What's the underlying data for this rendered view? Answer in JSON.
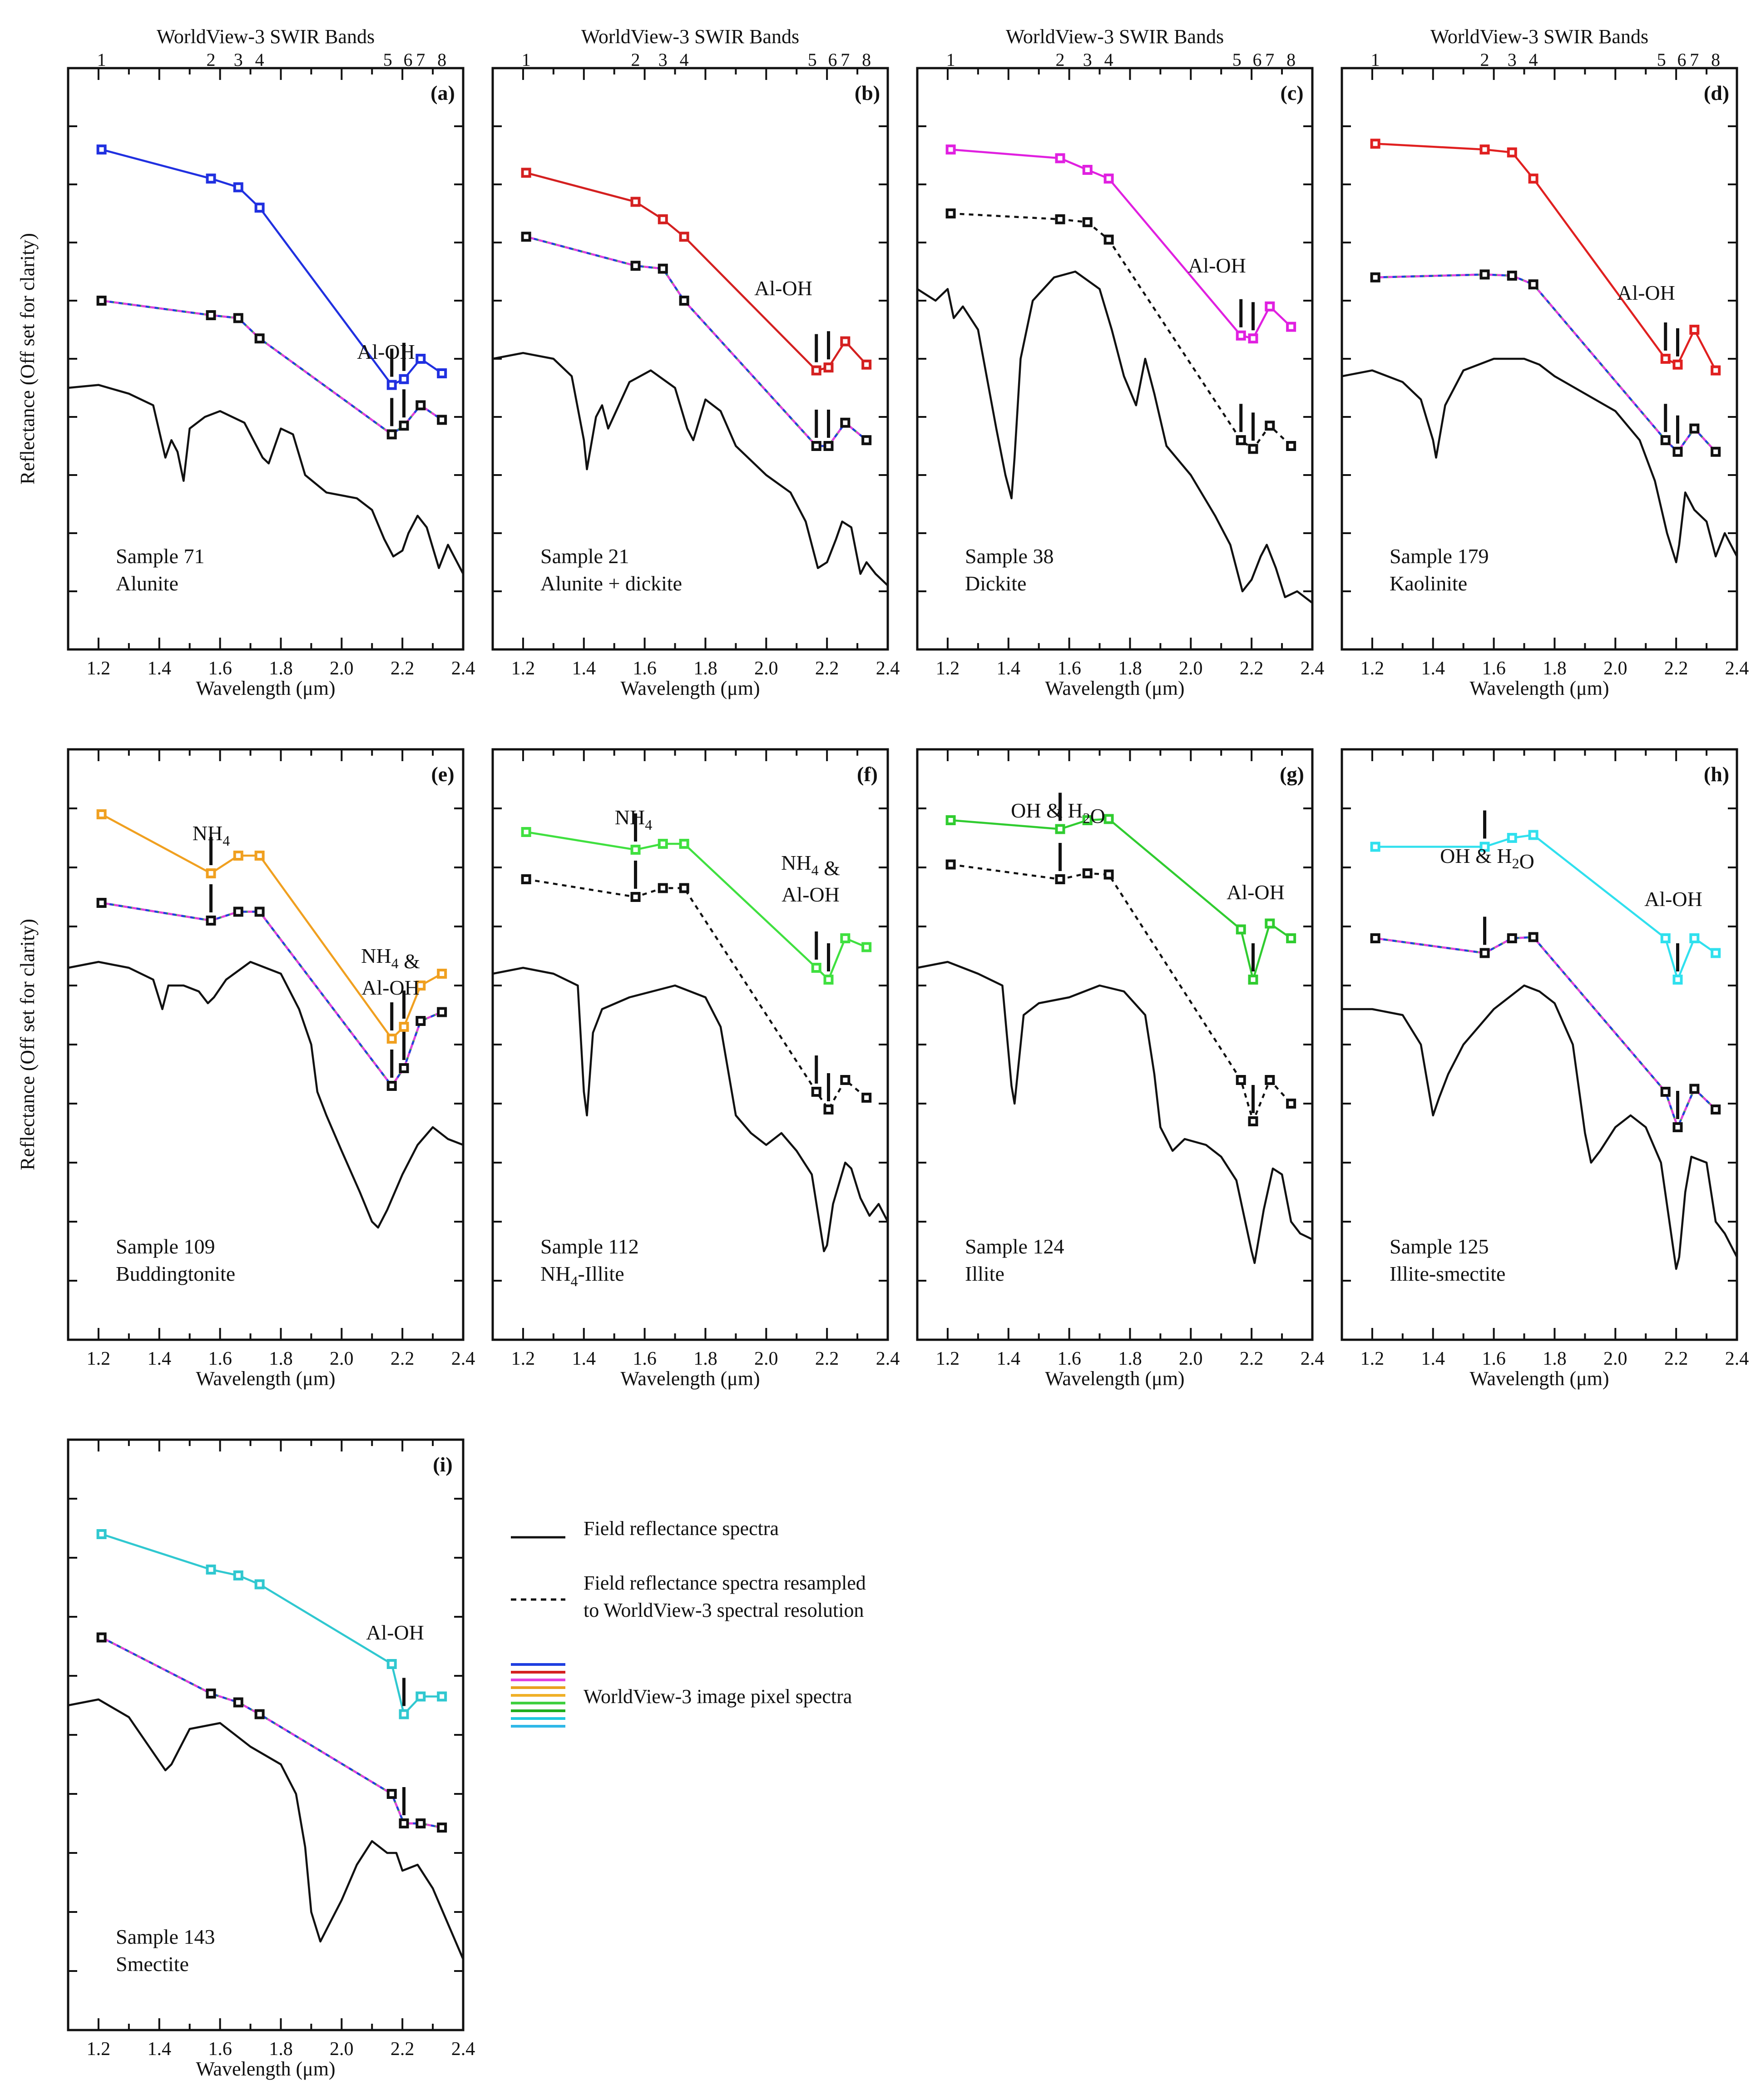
{
  "figure": {
    "band_axis_title": "WorldView-3 SWIR Bands",
    "y_axis_title": "Reflectance (Off set for clarity)",
    "x_axis_title": "Wavelength (μm)",
    "band_labels": [
      "1",
      "2",
      "3",
      "4",
      "5",
      "6",
      "7",
      "8"
    ],
    "band_centers_um": [
      1.21,
      1.57,
      1.66,
      1.73,
      2.165,
      2.205,
      2.26,
      2.33
    ],
    "x_ticks": [
      "1.2",
      "1.4",
      "1.6",
      "1.8",
      "2.0",
      "2.2",
      "2.4"
    ],
    "xlim": [
      1.1,
      2.4
    ]
  },
  "legend": {
    "field_label": "Field reflectance spectra",
    "resampled_label_line1": "Field reflectance spectra resampled",
    "resampled_label_line2": "to WorldView-3 spectral resolution",
    "image_label": "WorldView-3 image pixel spectra",
    "image_colors": [
      "#1f3fe0",
      "#d42020",
      "#e040e0",
      "#e8a020",
      "#f0b028",
      "#40d040",
      "#1fae1f",
      "#20c8e0",
      "#30b8e8"
    ]
  },
  "chart_data": [
    {
      "type": "line",
      "panel": "(a)",
      "sample": "Sample 71",
      "mineral": "Alunite",
      "image_color": "#2030e0",
      "annotations": [
        {
          "text": "Al-OH"
        }
      ],
      "series": [
        {
          "name": "WorldView-3 image pixel spectra",
          "values": [
            0.86,
            0.81,
            0.795,
            0.76,
            0.455,
            0.465,
            0.5,
            0.475
          ]
        },
        {
          "name": "Field reflectance spectra resampled",
          "values": [
            0.6,
            0.575,
            0.57,
            0.535,
            0.37,
            0.385,
            0.42,
            0.395
          ]
        }
      ],
      "field_spectrum": {
        "x": [
          1.1,
          1.2,
          1.3,
          1.38,
          1.42,
          1.44,
          1.46,
          1.48,
          1.5,
          1.55,
          1.6,
          1.68,
          1.74,
          1.76,
          1.8,
          1.84,
          1.88,
          1.95,
          2.05,
          2.1,
          2.14,
          2.17,
          2.2,
          2.22,
          2.25,
          2.28,
          2.32,
          2.35,
          2.38,
          2.4
        ],
        "y": [
          0.45,
          0.455,
          0.44,
          0.42,
          0.33,
          0.36,
          0.34,
          0.29,
          0.38,
          0.4,
          0.41,
          0.39,
          0.33,
          0.32,
          0.38,
          0.37,
          0.3,
          0.27,
          0.26,
          0.24,
          0.19,
          0.16,
          0.17,
          0.2,
          0.23,
          0.21,
          0.14,
          0.18,
          0.15,
          0.13
        ]
      },
      "ylim": [
        0,
        1
      ]
    },
    {
      "type": "line",
      "panel": "(b)",
      "sample": "Sample 21",
      "mineral": "Alunite + dickite",
      "image_color": "#d42020",
      "annotations": [
        {
          "text": "Al-OH"
        }
      ],
      "series": [
        {
          "name": "WorldView-3 image pixel spectra",
          "values": [
            0.82,
            0.77,
            0.74,
            0.71,
            0.48,
            0.485,
            0.53,
            0.49
          ]
        },
        {
          "name": "Field reflectance spectra resampled",
          "values": [
            0.71,
            0.66,
            0.655,
            0.6,
            0.35,
            0.35,
            0.39,
            0.36
          ]
        }
      ],
      "field_spectrum": {
        "x": [
          1.1,
          1.2,
          1.3,
          1.36,
          1.4,
          1.41,
          1.44,
          1.46,
          1.48,
          1.55,
          1.62,
          1.7,
          1.74,
          1.76,
          1.8,
          1.85,
          1.9,
          2.0,
          2.08,
          2.13,
          2.17,
          2.2,
          2.23,
          2.25,
          2.28,
          2.31,
          2.33,
          2.36,
          2.4
        ],
        "y": [
          0.5,
          0.51,
          0.5,
          0.47,
          0.36,
          0.31,
          0.4,
          0.42,
          0.38,
          0.46,
          0.48,
          0.45,
          0.38,
          0.36,
          0.43,
          0.41,
          0.35,
          0.3,
          0.27,
          0.22,
          0.14,
          0.15,
          0.19,
          0.22,
          0.21,
          0.13,
          0.15,
          0.13,
          0.11
        ]
      },
      "ylim": [
        0,
        1
      ]
    },
    {
      "type": "line",
      "panel": "(c)",
      "sample": "Sample 38",
      "mineral": "Dickite",
      "image_color": "#e020e0",
      "annotations": [
        {
          "text": "Al-OH"
        }
      ],
      "series": [
        {
          "name": "WorldView-3 image pixel spectra",
          "values": [
            0.86,
            0.845,
            0.825,
            0.81,
            0.54,
            0.535,
            0.59,
            0.555
          ]
        },
        {
          "name": "Field reflectance spectra resampled",
          "values": [
            0.75,
            0.74,
            0.735,
            0.705,
            0.36,
            0.345,
            0.385,
            0.35
          ]
        }
      ],
      "field_spectrum": {
        "x": [
          1.1,
          1.16,
          1.2,
          1.22,
          1.25,
          1.3,
          1.36,
          1.39,
          1.41,
          1.42,
          1.44,
          1.48,
          1.55,
          1.62,
          1.7,
          1.74,
          1.78,
          1.82,
          1.85,
          1.88,
          1.92,
          2.0,
          2.08,
          2.13,
          2.17,
          2.2,
          2.23,
          2.25,
          2.28,
          2.31,
          2.35,
          2.4
        ],
        "y": [
          0.62,
          0.6,
          0.62,
          0.57,
          0.59,
          0.55,
          0.38,
          0.3,
          0.26,
          0.33,
          0.5,
          0.6,
          0.64,
          0.65,
          0.62,
          0.55,
          0.47,
          0.42,
          0.5,
          0.44,
          0.35,
          0.3,
          0.23,
          0.18,
          0.1,
          0.12,
          0.16,
          0.18,
          0.14,
          0.09,
          0.1,
          0.08
        ]
      },
      "ylim": [
        0,
        1
      ]
    },
    {
      "type": "line",
      "panel": "(d)",
      "sample": "Sample 179",
      "mineral": "Kaolinite",
      "image_color": "#e02020",
      "annotations": [
        {
          "text": "Al-OH"
        }
      ],
      "series": [
        {
          "name": "WorldView-3 image pixel spectra",
          "values": [
            0.87,
            0.86,
            0.855,
            0.81,
            0.5,
            0.49,
            0.55,
            0.48
          ]
        },
        {
          "name": "Field reflectance spectra resampled",
          "values": [
            0.64,
            0.645,
            0.643,
            0.628,
            0.36,
            0.34,
            0.38,
            0.34
          ]
        }
      ],
      "field_spectrum": {
        "x": [
          1.1,
          1.2,
          1.3,
          1.36,
          1.4,
          1.41,
          1.44,
          1.5,
          1.6,
          1.7,
          1.75,
          1.8,
          1.9,
          2.0,
          2.08,
          2.13,
          2.17,
          2.2,
          2.21,
          2.23,
          2.26,
          2.3,
          2.33,
          2.36,
          2.4
        ],
        "y": [
          0.47,
          0.48,
          0.46,
          0.43,
          0.36,
          0.33,
          0.42,
          0.48,
          0.5,
          0.5,
          0.49,
          0.47,
          0.44,
          0.41,
          0.36,
          0.29,
          0.2,
          0.15,
          0.18,
          0.27,
          0.24,
          0.22,
          0.16,
          0.2,
          0.16
        ]
      },
      "ylim": [
        0,
        1
      ]
    },
    {
      "type": "line",
      "panel": "(e)",
      "sample": "Sample 109",
      "mineral": "Buddingtonite",
      "image_color": "#f0a020",
      "annotations": [
        {
          "text": "NH4"
        },
        {
          "text": "NH4 & Al-OH"
        }
      ],
      "series": [
        {
          "name": "WorldView-3 image pixel spectra",
          "values": [
            0.89,
            0.79,
            0.82,
            0.82,
            0.51,
            0.53,
            0.6,
            0.62
          ]
        },
        {
          "name": "Field reflectance spectra resampled",
          "values": [
            0.74,
            0.71,
            0.725,
            0.725,
            0.43,
            0.46,
            0.54,
            0.555
          ]
        }
      ],
      "field_spectrum": {
        "x": [
          1.1,
          1.2,
          1.3,
          1.38,
          1.41,
          1.43,
          1.48,
          1.53,
          1.56,
          1.58,
          1.62,
          1.7,
          1.8,
          1.86,
          1.9,
          1.92,
          1.95,
          2.0,
          2.06,
          2.1,
          2.12,
          2.15,
          2.2,
          2.25,
          2.3,
          2.35,
          2.4
        ],
        "y": [
          0.63,
          0.64,
          0.63,
          0.61,
          0.56,
          0.6,
          0.6,
          0.59,
          0.57,
          0.58,
          0.61,
          0.64,
          0.62,
          0.56,
          0.5,
          0.42,
          0.38,
          0.32,
          0.25,
          0.2,
          0.19,
          0.22,
          0.28,
          0.33,
          0.36,
          0.34,
          0.33
        ]
      },
      "ylim": [
        0,
        1
      ]
    },
    {
      "type": "line",
      "panel": "(f)",
      "sample": "Sample 112",
      "mineral": "NH4-Illite",
      "image_color": "#40e040",
      "annotations": [
        {
          "text": "NH4"
        },
        {
          "text": "NH4 & Al-OH"
        }
      ],
      "series": [
        {
          "name": "WorldView-3 image pixel spectra",
          "values": [
            0.86,
            0.83,
            0.84,
            0.84,
            0.63,
            0.61,
            0.68,
            0.665
          ]
        },
        {
          "name": "Field reflectance spectra resampled",
          "values": [
            0.78,
            0.75,
            0.765,
            0.765,
            0.42,
            0.39,
            0.44,
            0.41
          ]
        }
      ],
      "field_spectrum": {
        "x": [
          1.1,
          1.2,
          1.3,
          1.38,
          1.4,
          1.41,
          1.43,
          1.46,
          1.55,
          1.7,
          1.8,
          1.85,
          1.88,
          1.9,
          1.95,
          2.0,
          2.05,
          2.1,
          2.15,
          2.19,
          2.2,
          2.22,
          2.26,
          2.28,
          2.31,
          2.34,
          2.37,
          2.4
        ],
        "y": [
          0.62,
          0.63,
          0.62,
          0.6,
          0.42,
          0.38,
          0.52,
          0.56,
          0.58,
          0.6,
          0.58,
          0.53,
          0.44,
          0.38,
          0.35,
          0.33,
          0.35,
          0.32,
          0.28,
          0.15,
          0.16,
          0.23,
          0.3,
          0.29,
          0.24,
          0.21,
          0.23,
          0.2
        ]
      },
      "ylim": [
        0,
        1
      ]
    },
    {
      "type": "line",
      "panel": "(g)",
      "sample": "Sample 124",
      "mineral": "Illite",
      "image_color": "#30cc30",
      "annotations": [
        {
          "text": "OH & H2O"
        },
        {
          "text": "Al-OH"
        }
      ],
      "series": [
        {
          "name": "WorldView-3 image pixel spectra",
          "values": [
            0.88,
            0.865,
            0.88,
            0.882,
            0.695,
            0.61,
            0.705,
            0.68
          ]
        },
        {
          "name": "Field reflectance spectra resampled",
          "values": [
            0.805,
            0.78,
            0.79,
            0.788,
            0.44,
            0.37,
            0.44,
            0.4
          ]
        }
      ],
      "field_spectrum": {
        "x": [
          1.1,
          1.2,
          1.3,
          1.38,
          1.41,
          1.42,
          1.45,
          1.5,
          1.6,
          1.7,
          1.78,
          1.85,
          1.88,
          1.9,
          1.94,
          1.98,
          2.05,
          2.1,
          2.15,
          2.2,
          2.21,
          2.24,
          2.27,
          2.3,
          2.33,
          2.36,
          2.4
        ],
        "y": [
          0.63,
          0.64,
          0.62,
          0.6,
          0.43,
          0.4,
          0.55,
          0.57,
          0.58,
          0.6,
          0.59,
          0.55,
          0.45,
          0.36,
          0.32,
          0.34,
          0.33,
          0.31,
          0.27,
          0.15,
          0.13,
          0.22,
          0.29,
          0.28,
          0.2,
          0.18,
          0.17
        ]
      },
      "ylim": [
        0,
        1
      ]
    },
    {
      "type": "line",
      "panel": "(h)",
      "sample": "Sample 125",
      "mineral": "Illite-smectite",
      "image_color": "#30e0ee",
      "annotations": [
        {
          "text": "OH & H2O"
        },
        {
          "text": "Al-OH"
        }
      ],
      "series": [
        {
          "name": "WorldView-3 image pixel spectra",
          "values": [
            0.835,
            0.835,
            0.85,
            0.855,
            0.68,
            0.61,
            0.68,
            0.655
          ]
        },
        {
          "name": "Field reflectance spectra resampled",
          "values": [
            0.68,
            0.655,
            0.68,
            0.682,
            0.42,
            0.36,
            0.425,
            0.39
          ]
        }
      ],
      "field_spectrum": {
        "x": [
          1.1,
          1.2,
          1.3,
          1.36,
          1.4,
          1.42,
          1.45,
          1.5,
          1.6,
          1.7,
          1.75,
          1.8,
          1.86,
          1.9,
          1.92,
          1.95,
          2.0,
          2.05,
          2.1,
          2.15,
          2.2,
          2.21,
          2.23,
          2.25,
          2.3,
          2.33,
          2.36,
          2.4
        ],
        "y": [
          0.56,
          0.56,
          0.55,
          0.5,
          0.38,
          0.41,
          0.45,
          0.5,
          0.56,
          0.6,
          0.59,
          0.57,
          0.5,
          0.35,
          0.3,
          0.32,
          0.36,
          0.38,
          0.36,
          0.3,
          0.12,
          0.14,
          0.25,
          0.31,
          0.3,
          0.2,
          0.18,
          0.14
        ]
      },
      "ylim": [
        0,
        1
      ]
    },
    {
      "type": "line",
      "panel": "(i)",
      "sample": "Sample 143",
      "mineral": "Smectite",
      "image_color": "#30c8d0",
      "annotations": [
        {
          "text": "Al-OH"
        }
      ],
      "series": [
        {
          "name": "WorldView-3 image pixel spectra",
          "values": [
            0.84,
            0.78,
            0.77,
            0.755,
            0.62,
            0.535,
            0.565,
            0.565
          ]
        },
        {
          "name": "Field reflectance spectra resampled",
          "values": [
            0.665,
            0.57,
            0.555,
            0.535,
            0.4,
            0.35,
            0.35,
            0.343
          ]
        }
      ],
      "field_spectrum": {
        "x": [
          1.1,
          1.2,
          1.3,
          1.38,
          1.42,
          1.44,
          1.5,
          1.6,
          1.7,
          1.8,
          1.85,
          1.88,
          1.9,
          1.93,
          1.96,
          2.0,
          2.05,
          2.1,
          2.15,
          2.18,
          2.2,
          2.25,
          2.3,
          2.35,
          2.4
        ],
        "y": [
          0.55,
          0.56,
          0.53,
          0.47,
          0.44,
          0.45,
          0.51,
          0.52,
          0.48,
          0.45,
          0.4,
          0.31,
          0.2,
          0.15,
          0.18,
          0.22,
          0.28,
          0.32,
          0.3,
          0.3,
          0.27,
          0.28,
          0.24,
          0.18,
          0.12
        ]
      },
      "ylim": [
        0,
        1
      ]
    }
  ]
}
